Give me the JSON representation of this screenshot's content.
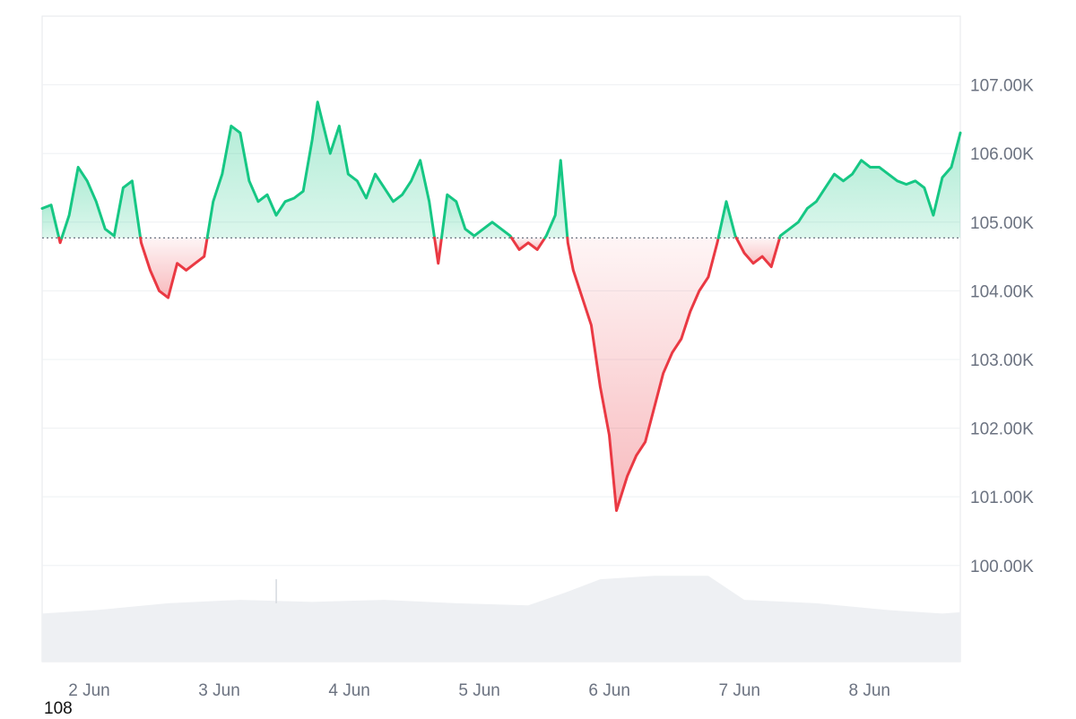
{
  "chart_data": {
    "type": "area",
    "baseline_value": 104770,
    "y_ticks": [
      100000,
      101000,
      102000,
      103000,
      104000,
      105000,
      106000,
      107000
    ],
    "y_tick_labels": [
      "100.00K",
      "101.00K",
      "102.00K",
      "103.00K",
      "104.00K",
      "105.00K",
      "106.00K",
      "107.00K"
    ],
    "ylim": [
      98600,
      108000
    ],
    "x_tick_labels": [
      "2 Jun",
      "3 Jun",
      "4 Jun",
      "5 Jun",
      "6 Jun",
      "7 Jun",
      "8 Jun"
    ],
    "x_tick_days": [
      2,
      3,
      4,
      5,
      6,
      7,
      8
    ],
    "x_range_days": [
      1.9,
      8.96
    ],
    "colors": {
      "up": "#16c784",
      "down": "#ea3943",
      "up_fill": "#c9f2de",
      "down_fill": "#fbd5d7",
      "volume": "#eef0f3",
      "grid": "#eef0f3",
      "baseline": "#6b7280"
    },
    "price_series": [
      [
        1.9,
        105200
      ],
      [
        1.95,
        105250
      ],
      [
        2.0,
        104700
      ],
      [
        2.05,
        105100
      ],
      [
        2.1,
        105800
      ],
      [
        2.15,
        105600
      ],
      [
        2.2,
        105300
      ],
      [
        2.25,
        104900
      ],
      [
        2.3,
        104800
      ],
      [
        2.35,
        105500
      ],
      [
        2.4,
        105600
      ],
      [
        2.45,
        104700
      ],
      [
        2.5,
        104300
      ],
      [
        2.55,
        104000
      ],
      [
        2.6,
        103900
      ],
      [
        2.65,
        104400
      ],
      [
        2.7,
        104300
      ],
      [
        2.75,
        104400
      ],
      [
        2.8,
        104500
      ],
      [
        2.85,
        105300
      ],
      [
        2.9,
        105700
      ],
      [
        2.95,
        106400
      ],
      [
        3.0,
        106300
      ],
      [
        3.05,
        105600
      ],
      [
        3.1,
        105300
      ],
      [
        3.15,
        105400
      ],
      [
        3.2,
        105100
      ],
      [
        3.25,
        105300
      ],
      [
        3.3,
        105350
      ],
      [
        3.35,
        105450
      ],
      [
        3.4,
        106200
      ],
      [
        3.43,
        106750
      ],
      [
        3.5,
        106000
      ],
      [
        3.55,
        106400
      ],
      [
        3.6,
        105700
      ],
      [
        3.65,
        105600
      ],
      [
        3.7,
        105350
      ],
      [
        3.75,
        105700
      ],
      [
        3.8,
        105500
      ],
      [
        3.85,
        105300
      ],
      [
        3.9,
        105400
      ],
      [
        3.95,
        105600
      ],
      [
        4.0,
        105900
      ],
      [
        4.05,
        105300
      ],
      [
        4.1,
        104400
      ],
      [
        4.15,
        105400
      ],
      [
        4.2,
        105300
      ],
      [
        4.25,
        104900
      ],
      [
        4.3,
        104800
      ],
      [
        4.35,
        104900
      ],
      [
        4.4,
        105000
      ],
      [
        4.45,
        104900
      ],
      [
        4.5,
        104800
      ],
      [
        4.55,
        104600
      ],
      [
        4.6,
        104700
      ],
      [
        4.65,
        104600
      ],
      [
        4.7,
        104800
      ],
      [
        4.75,
        105100
      ],
      [
        4.78,
        105900
      ],
      [
        4.82,
        104700
      ],
      [
        4.85,
        104300
      ],
      [
        4.9,
        103900
      ],
      [
        4.95,
        103500
      ],
      [
        5.0,
        102600
      ],
      [
        5.05,
        101900
      ],
      [
        5.09,
        100800
      ],
      [
        5.15,
        101300
      ],
      [
        5.2,
        101600
      ],
      [
        5.25,
        101800
      ],
      [
        5.3,
        102300
      ],
      [
        5.35,
        102800
      ],
      [
        5.4,
        103100
      ],
      [
        5.45,
        103300
      ],
      [
        5.5,
        103700
      ],
      [
        5.55,
        104000
      ],
      [
        5.6,
        104200
      ],
      [
        5.65,
        104700
      ],
      [
        5.7,
        105300
      ],
      [
        5.75,
        104800
      ],
      [
        5.8,
        104550
      ],
      [
        5.85,
        104400
      ],
      [
        5.9,
        104500
      ],
      [
        5.95,
        104350
      ],
      [
        6.0,
        104800
      ],
      [
        6.05,
        104900
      ],
      [
        6.1,
        105000
      ],
      [
        6.15,
        105200
      ],
      [
        6.2,
        105300
      ],
      [
        6.25,
        105500
      ],
      [
        6.3,
        105700
      ],
      [
        6.35,
        105600
      ],
      [
        6.4,
        105700
      ],
      [
        6.45,
        105900
      ],
      [
        6.5,
        105800
      ],
      [
        6.55,
        105800
      ],
      [
        6.6,
        105700
      ],
      [
        6.65,
        105600
      ],
      [
        6.7,
        105550
      ],
      [
        6.75,
        105600
      ],
      [
        6.8,
        105500
      ],
      [
        6.85,
        105100
      ],
      [
        6.9,
        105650
      ],
      [
        6.95,
        105800
      ],
      [
        7.0,
        106300
      ]
    ],
    "volume_series": [
      [
        1.9,
        99300
      ],
      [
        2.2,
        99350
      ],
      [
        2.6,
        99450
      ],
      [
        3.0,
        99500
      ],
      [
        3.4,
        99470
      ],
      [
        3.8,
        99500
      ],
      [
        4.2,
        99450
      ],
      [
        4.6,
        99420
      ],
      [
        4.8,
        99600
      ],
      [
        5.0,
        99800
      ],
      [
        5.3,
        99850
      ],
      [
        5.6,
        99850
      ],
      [
        5.8,
        99500
      ],
      [
        6.2,
        99450
      ],
      [
        6.6,
        99350
      ],
      [
        6.9,
        99300
      ],
      [
        7.0,
        99320
      ]
    ]
  },
  "footer_note": "108"
}
